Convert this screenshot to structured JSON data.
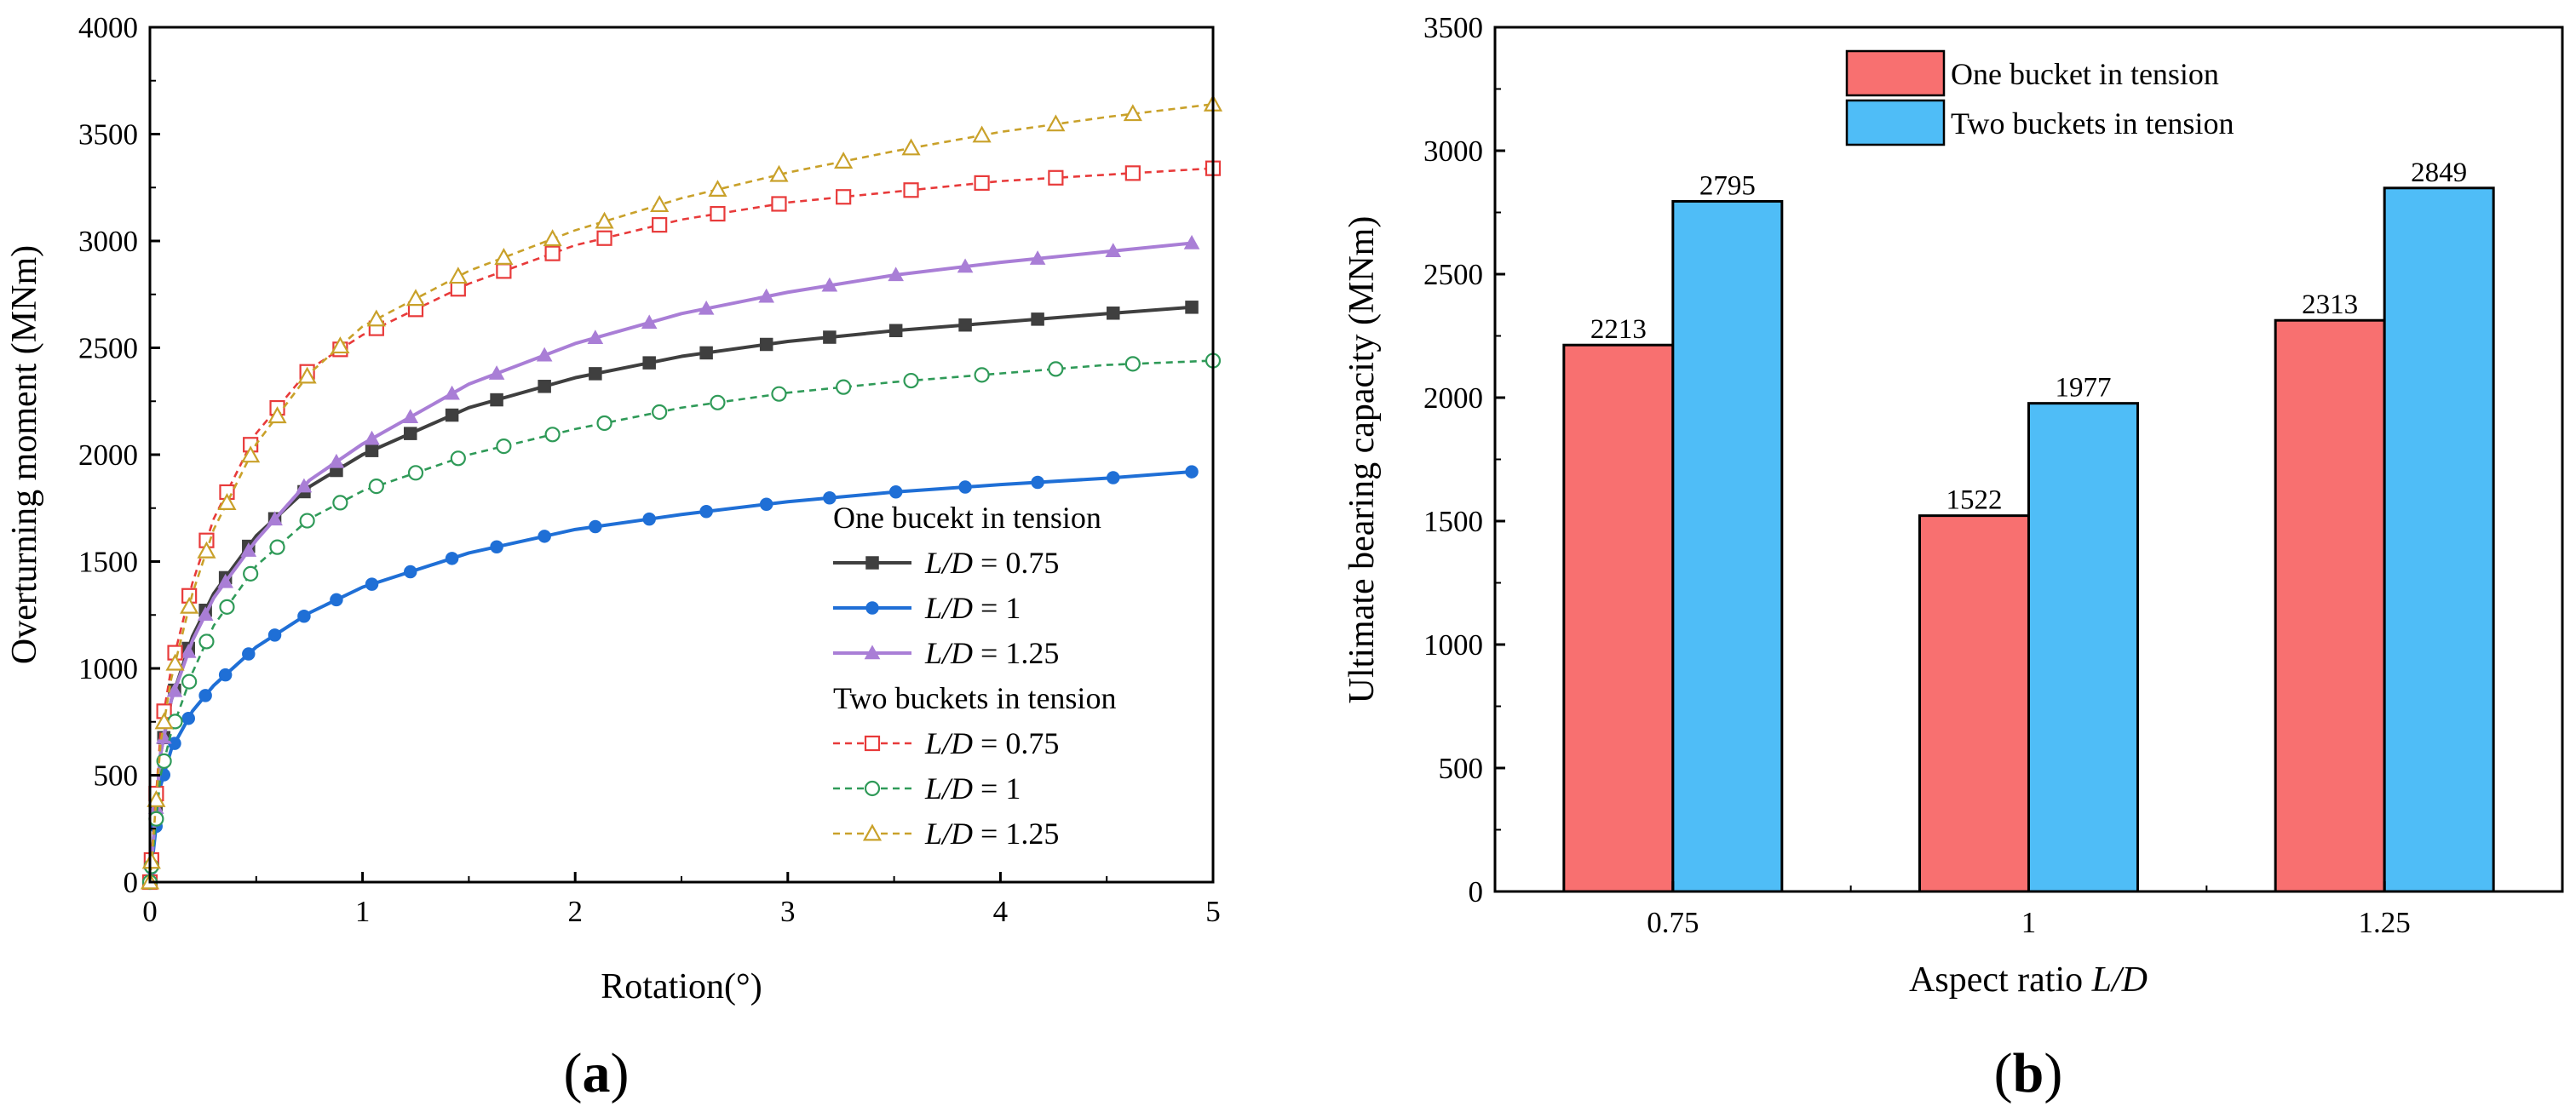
{
  "chart_data": [
    {
      "type": "line",
      "panel_label": {
        "open": "(",
        "letter": "a",
        "close": ")"
      },
      "xlabel": "Rotation(°)",
      "ylabel": "Overturning moment (MNm)",
      "xlim": [
        0,
        5
      ],
      "ylim": [
        0,
        4000
      ],
      "xticks": [
        "0",
        "1",
        "2",
        "3",
        "4",
        "5"
      ],
      "yticks": [
        "0",
        "500",
        "1000",
        "1500",
        "2000",
        "2500",
        "3000",
        "3500",
        "4000"
      ],
      "legend_position": "bottom-right",
      "legend_groups": [
        {
          "title": "One bucekt in tension",
          "series_index": [
            0,
            1,
            2
          ]
        },
        {
          "title": "Two buckets in tension",
          "series_index": [
            3,
            4,
            5
          ]
        }
      ],
      "series": [
        {
          "name": "L/D = 0.75",
          "var": "L/D",
          "eq": " = 0.75",
          "group": "One bucekt in tension",
          "color": "#3f3f3f",
          "marker": "square",
          "filled": true,
          "dashed": false,
          "x": [
            0,
            0.05,
            0.1,
            0.2,
            0.3,
            0.5,
            0.75,
            1,
            1.5,
            2,
            2.5,
            3,
            3.5,
            4,
            4.5,
            4.9
          ],
          "y": [
            0,
            600,
            850,
            1150,
            1350,
            1620,
            1850,
            2000,
            2220,
            2360,
            2460,
            2530,
            2580,
            2620,
            2660,
            2690
          ]
        },
        {
          "name": "L/D = 1",
          "var": "L/D",
          "eq": " = 1",
          "group": "One bucekt in tension",
          "color": "#1f6fd6",
          "marker": "circle",
          "filled": true,
          "dashed": false,
          "x": [
            0,
            0.05,
            0.1,
            0.2,
            0.3,
            0.5,
            0.75,
            1,
            1.5,
            2,
            2.5,
            3,
            3.5,
            4,
            4.5,
            4.9
          ],
          "y": [
            0,
            450,
            620,
            800,
            920,
            1100,
            1260,
            1380,
            1540,
            1650,
            1720,
            1780,
            1825,
            1860,
            1890,
            1920
          ]
        },
        {
          "name": "L/D = 1.25",
          "var": "L/D",
          "eq": " = 1.25",
          "group": "One bucekt in tension",
          "color": "#a97ed6",
          "marker": "triangle",
          "filled": true,
          "dashed": false,
          "x": [
            0,
            0.05,
            0.1,
            0.2,
            0.3,
            0.5,
            0.75,
            1,
            1.5,
            2,
            2.5,
            3,
            3.5,
            4,
            4.5,
            4.9
          ],
          "y": [
            0,
            600,
            850,
            1130,
            1330,
            1600,
            1880,
            2050,
            2330,
            2520,
            2660,
            2760,
            2840,
            2900,
            2950,
            2990
          ]
        },
        {
          "name": "L/D = 0.75",
          "var": "L/D",
          "eq": " = 0.75",
          "group": "Two buckets in tension",
          "color": "#e83a3a",
          "marker": "square",
          "filled": false,
          "dashed": true,
          "x": [
            0,
            0.05,
            0.1,
            0.2,
            0.3,
            0.5,
            0.75,
            1,
            1.5,
            2,
            2.5,
            3,
            3.5,
            4,
            4.5,
            5
          ],
          "y": [
            0,
            700,
            1000,
            1400,
            1700,
            2100,
            2400,
            2560,
            2800,
            2980,
            3100,
            3180,
            3230,
            3280,
            3310,
            3340
          ]
        },
        {
          "name": "L/D = 1",
          "var": "L/D",
          "eq": " = 1",
          "group": "Two buckets in tension",
          "color": "#2f9a58",
          "marker": "circle",
          "filled": false,
          "dashed": true,
          "x": [
            0,
            0.05,
            0.1,
            0.2,
            0.3,
            0.5,
            0.75,
            1,
            1.5,
            2,
            2.5,
            3,
            3.5,
            4,
            4.5,
            5
          ],
          "y": [
            0,
            500,
            700,
            980,
            1200,
            1480,
            1700,
            1830,
            2000,
            2120,
            2220,
            2290,
            2340,
            2380,
            2420,
            2440
          ]
        },
        {
          "name": "L/D = 1.25",
          "var": "L/D",
          "eq": " = 1.25",
          "group": "Two buckets in tension",
          "color": "#c9a12a",
          "marker": "triangle",
          "filled": false,
          "dashed": true,
          "x": [
            0,
            0.05,
            0.1,
            0.2,
            0.3,
            0.5,
            0.75,
            1,
            1.5,
            2,
            2.5,
            3,
            3.5,
            4,
            4.5,
            5
          ],
          "y": [
            0,
            650,
            950,
            1350,
            1650,
            2050,
            2380,
            2600,
            2860,
            3050,
            3200,
            3320,
            3420,
            3510,
            3580,
            3640
          ]
        }
      ]
    },
    {
      "type": "bar",
      "panel_label": {
        "open": "(",
        "letter": "b",
        "close": ")"
      },
      "xlabel_prefix": "Aspect ratio ",
      "xlabel_var": "L/D",
      "ylabel": "Ultimate bearing capacity (MNm)",
      "ylim": [
        0,
        3500
      ],
      "yticks": [
        "0",
        "500",
        "1000",
        "1500",
        "2000",
        "2500",
        "3000",
        "3500"
      ],
      "categories": [
        "0.75",
        "1",
        "1.25"
      ],
      "legend_position": "top-center",
      "series": [
        {
          "name": "One bucket in tension",
          "color": "#f87070",
          "values": [
            2213,
            1522,
            2313
          ]
        },
        {
          "name": "Two buckets in tension",
          "color": "#4fbdf7",
          "values": [
            2795,
            1977,
            2849
          ]
        }
      ]
    }
  ]
}
